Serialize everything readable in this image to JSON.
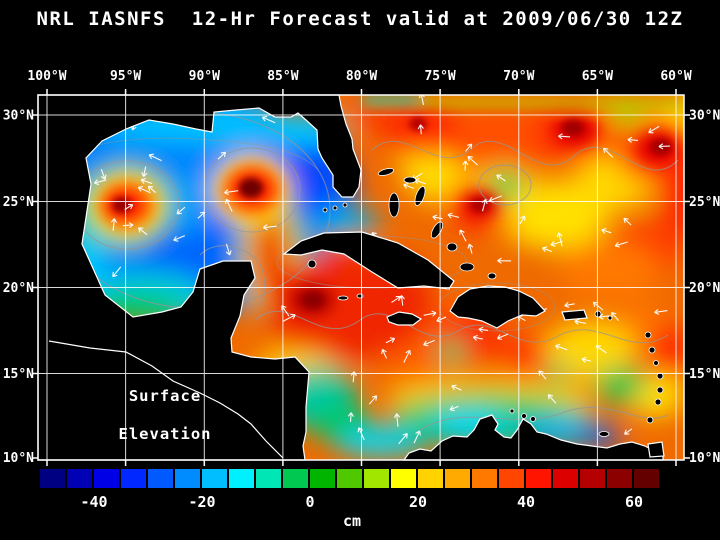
{
  "title": "NRL IASNFS  12-Hr Forecast valid at 2009/06/30 12Z",
  "annotation": {
    "line1": "Surface",
    "line2": "Elevation"
  },
  "axes": {
    "lon_ticks": [
      "100°W",
      "95°W",
      "90°W",
      "85°W",
      "80°W",
      "75°W",
      "70°W",
      "65°W",
      "60°W"
    ],
    "lat_ticks": [
      "30°N",
      "25°N",
      "20°N",
      "15°N",
      "10°N"
    ]
  },
  "colorbar": {
    "unit": "cm",
    "tick_labels": [
      "-40",
      "-20",
      "0",
      "20",
      "40",
      "60"
    ],
    "min": -50,
    "max": 65,
    "step": 5,
    "colors": [
      "#000082",
      "#0000b4",
      "#0000e6",
      "#0028ff",
      "#005aff",
      "#008cff",
      "#00beff",
      "#00f0ff",
      "#00e6b4",
      "#00c850",
      "#00b400",
      "#50c800",
      "#a0e600",
      "#ffff00",
      "#ffd200",
      "#ffaa00",
      "#ff7800",
      "#ff4600",
      "#ff1400",
      "#dc0000",
      "#b40000",
      "#8c0000",
      "#640000"
    ]
  },
  "chart_data": {
    "type": "heatmap",
    "variable": "Surface Elevation",
    "units": "cm",
    "title": "NRL IASNFS  12-Hr Forecast valid at 2009/06/30 12Z",
    "lon_range": [
      "100°W",
      "60°W"
    ],
    "lat_range": [
      "10°N",
      "30°N"
    ],
    "value_range": [
      -50,
      65
    ],
    "contour_interval": 5,
    "legend_position": "bottom",
    "grid": true,
    "description": "Filled rainbow contour map of model sea surface elevation (cm) over the Gulf of Mexico and Caribbean Sea with white surface-current vectors, gray contour lines, black land mask with white coastlines; warm (red) eddies in the western Gulf and Loop Current region, low (blue/cyan) elevation band along the South American coast, high (orange/red) field across the Caribbean and western Atlantic."
  }
}
